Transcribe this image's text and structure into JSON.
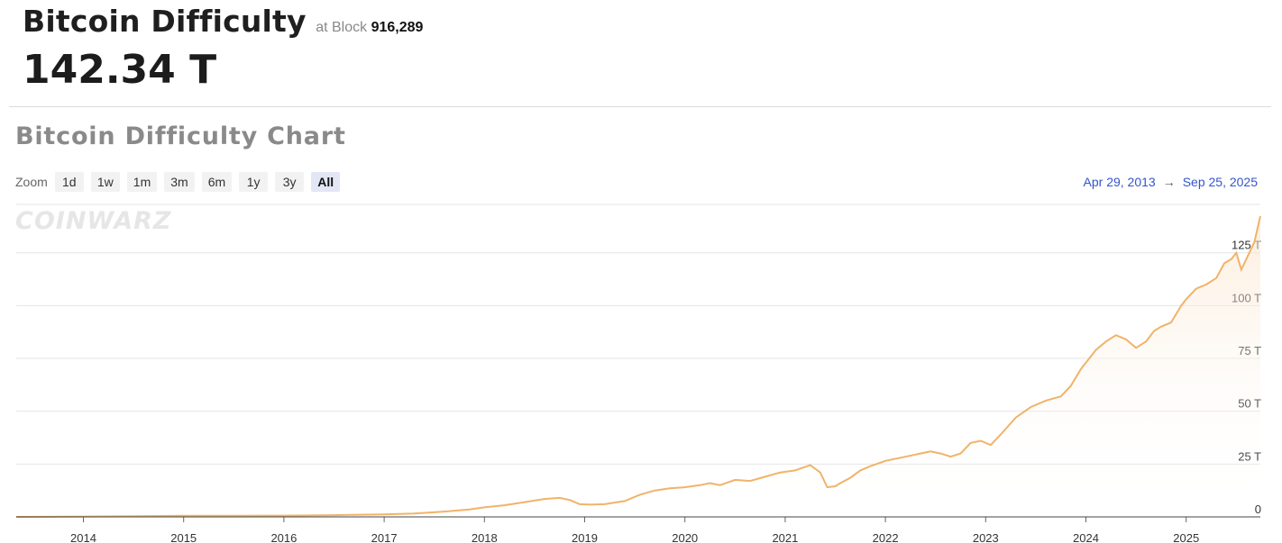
{
  "header": {
    "title": "Bitcoin Difficulty",
    "at_block_label": "at Block",
    "block_number": "916,289",
    "current_value": "142.34 T"
  },
  "chart_section": {
    "title": "Bitcoin Difficulty Chart",
    "zoom_label": "Zoom",
    "zoom_options": [
      "1d",
      "1w",
      "1m",
      "3m",
      "6m",
      "1y",
      "3y",
      "All"
    ],
    "active_zoom": "All",
    "range_start": "Apr 29, 2013",
    "range_end": "Sep 25, 2025",
    "watermark": "COINWARZ"
  },
  "colors": {
    "line": "#f0b36a",
    "fill_top": "#fbe3c9",
    "grid": "#e6e6e6",
    "range_link": "#3355cc"
  },
  "chart_data": {
    "type": "area",
    "title": "Bitcoin Difficulty Chart",
    "xlabel": "",
    "ylabel": "",
    "x_tick_labels": [
      "2014",
      "2015",
      "2016",
      "2017",
      "2018",
      "2019",
      "2020",
      "2021",
      "2022",
      "2023",
      "2024",
      "2025"
    ],
    "y_tick_labels": [
      "0",
      "25 T",
      "50 T",
      "75 T",
      "100 T",
      "125 T"
    ],
    "y_ticks": [
      0,
      25,
      50,
      75,
      100,
      125
    ],
    "ylim": [
      0,
      142.34
    ],
    "xlim": [
      2013.33,
      2025.74
    ],
    "grid": true,
    "series": [
      {
        "x": [
          2013.33,
          2013.6,
          2014.0,
          2014.5,
          2015.0,
          2015.5,
          2016.0,
          2016.5,
          2017.0,
          2017.3,
          2017.6,
          2017.85,
          2018.0,
          2018.2,
          2018.4,
          2018.6,
          2018.75,
          2018.85,
          2018.95,
          2019.05,
          2019.2,
          2019.4,
          2019.55,
          2019.7,
          2019.85,
          2020.0,
          2020.15,
          2020.25,
          2020.35,
          2020.5,
          2020.65,
          2020.8,
          2020.95,
          2021.1,
          2021.25,
          2021.35,
          2021.42,
          2021.5,
          2021.55,
          2021.65,
          2021.75,
          2021.85,
          2022.0,
          2022.15,
          2022.3,
          2022.45,
          2022.55,
          2022.65,
          2022.75,
          2022.85,
          2022.95,
          2023.05,
          2023.15,
          2023.3,
          2023.45,
          2023.6,
          2023.75,
          2023.85,
          2023.95,
          2024.1,
          2024.2,
          2024.3,
          2024.4,
          2024.5,
          2024.6,
          2024.68,
          2024.75,
          2024.85,
          2024.95,
          2025.0,
          2025.1,
          2025.2,
          2025.3,
          2025.38,
          2025.45,
          2025.5,
          2025.55,
          2025.6,
          2025.68,
          2025.74
        ],
        "y": [
          0.01,
          0.05,
          0.15,
          0.3,
          0.5,
          0.55,
          0.6,
          0.8,
          1.2,
          1.6,
          2.5,
          3.5,
          4.5,
          5.5,
          7.0,
          8.5,
          9.0,
          8.0,
          6.0,
          5.8,
          6.0,
          7.5,
          10.5,
          12.5,
          13.5,
          14.0,
          15.0,
          16.0,
          15.0,
          17.5,
          17.0,
          19.0,
          21.0,
          22.0,
          24.5,
          21.0,
          14.0,
          14.5,
          16.0,
          18.5,
          22.0,
          24.0,
          26.5,
          28.0,
          29.5,
          31.0,
          30.0,
          28.5,
          30.0,
          35.0,
          36.0,
          34.0,
          39.0,
          47.0,
          52.0,
          55.0,
          57.0,
          62.0,
          70.0,
          79.0,
          83.0,
          86.0,
          84.0,
          80.0,
          83.0,
          88.0,
          90.0,
          92.0,
          100.0,
          103.0,
          108.0,
          110.0,
          113.0,
          120.0,
          122.0,
          125.0,
          117.0,
          122.0,
          130.0,
          142.34
        ]
      }
    ]
  }
}
